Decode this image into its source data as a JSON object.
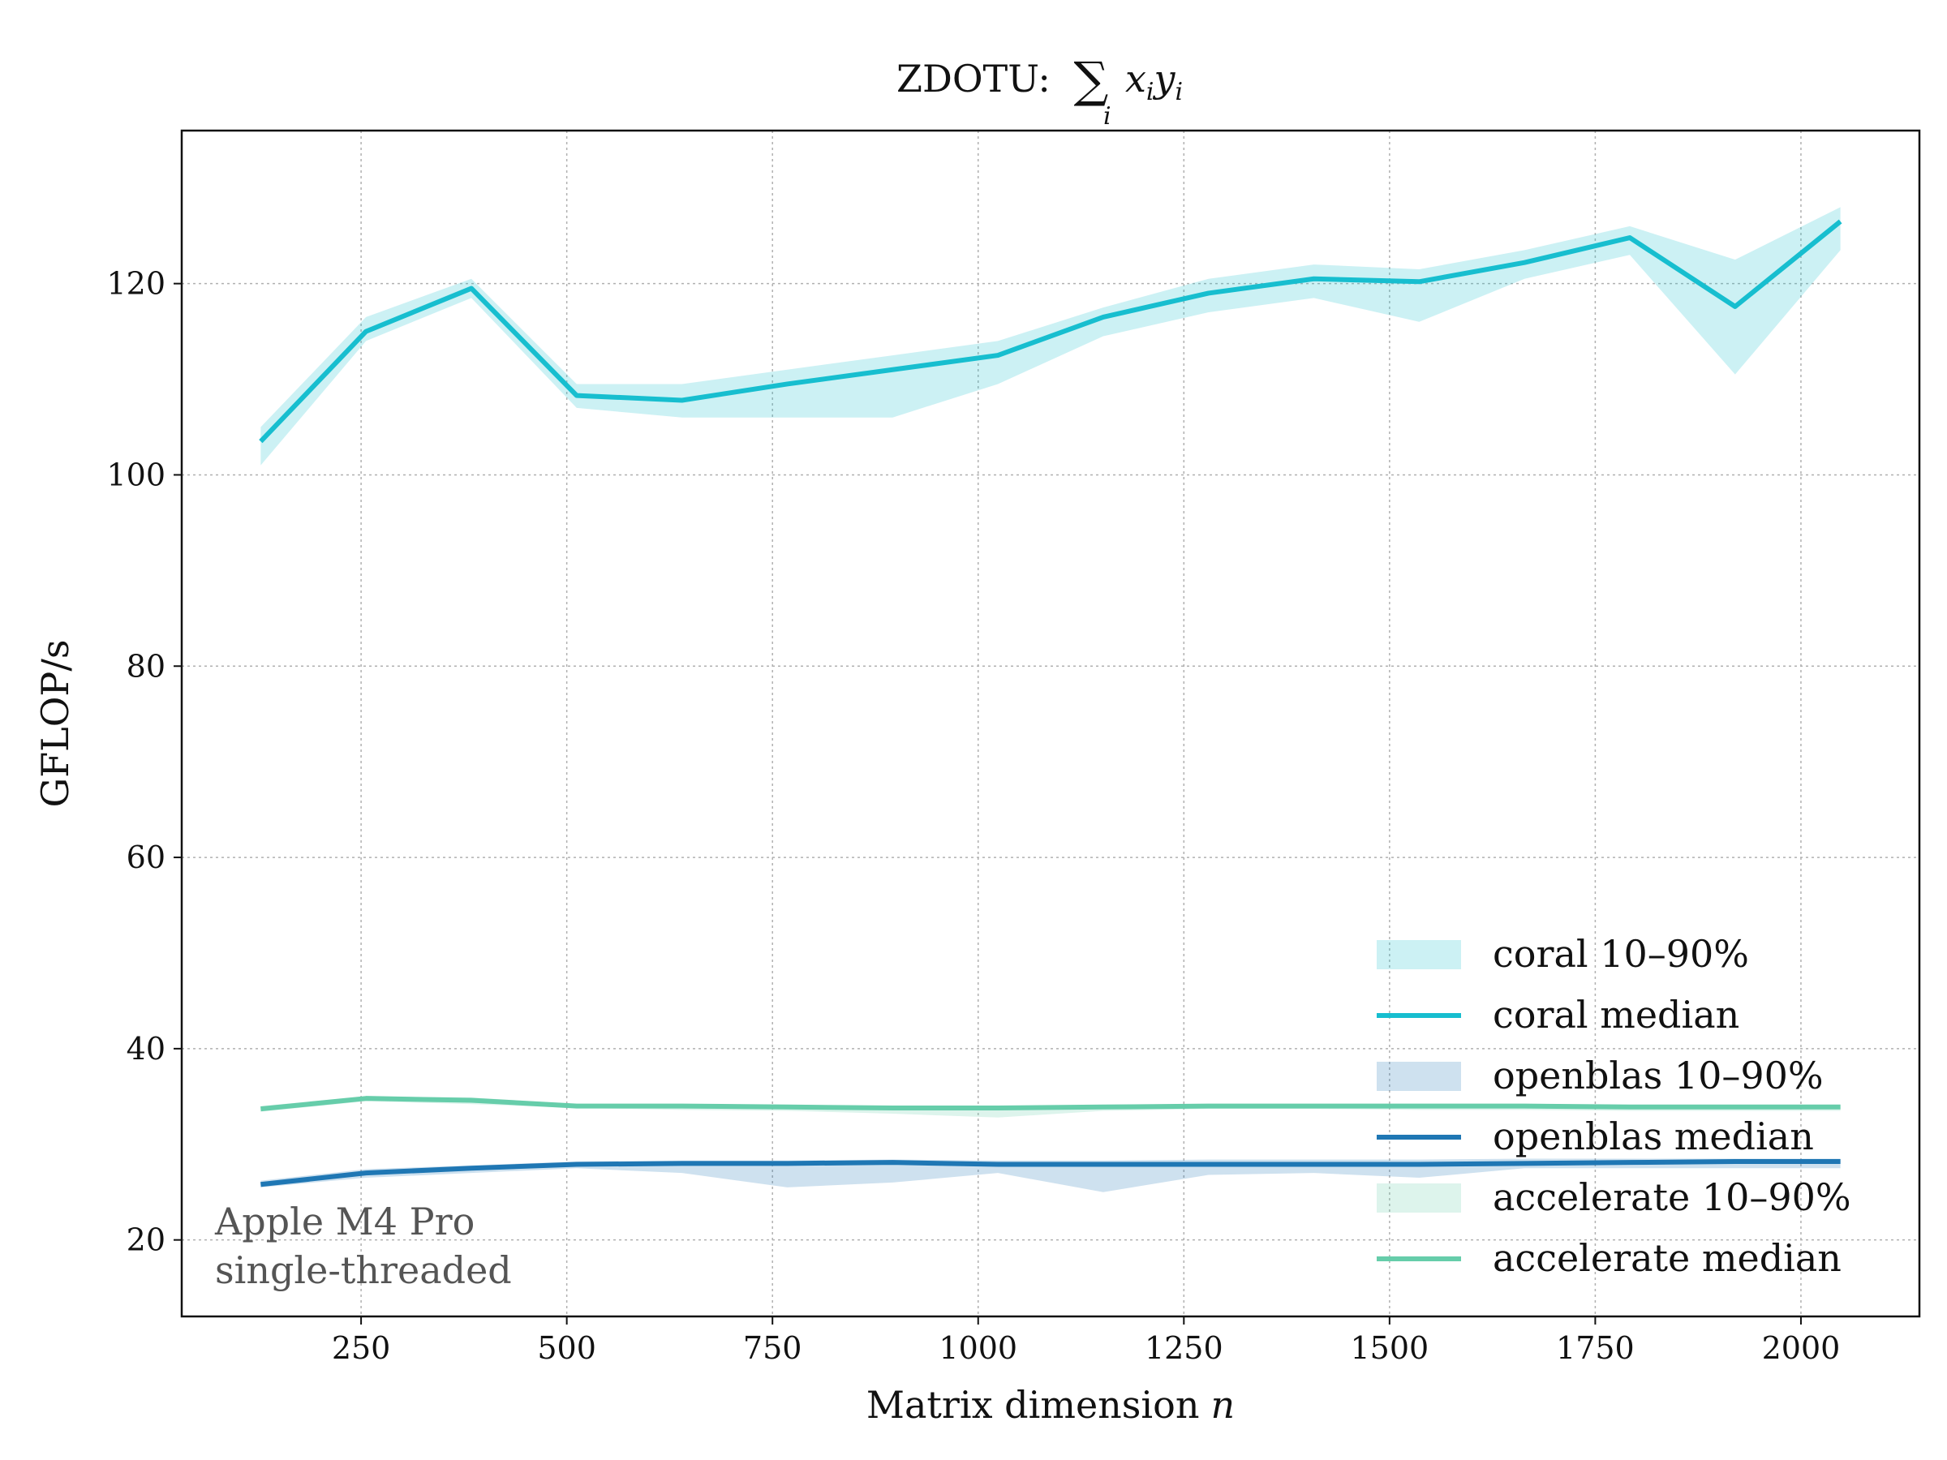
{
  "chart_data": {
    "type": "line",
    "title": "ZDOTU:",
    "title_math": {
      "operator": "∑",
      "subscript": "i",
      "expression": "x",
      "x_sub": "i",
      "y": "y",
      "y_sub": "i"
    },
    "xlabel": "Matrix dimension",
    "xlabel_var": "n",
    "ylabel": "GFLOP/s",
    "xlim": [
      32,
      2144
    ],
    "ylim": [
      12,
      136
    ],
    "xticks": [
      250,
      500,
      750,
      1000,
      1250,
      1500,
      1750,
      2000
    ],
    "yticks": [
      20,
      40,
      60,
      80,
      100,
      120
    ],
    "grid": true,
    "annotation": [
      "Apple M4 Pro",
      "single-threaded"
    ],
    "x": [
      128,
      256,
      384,
      512,
      640,
      768,
      896,
      1024,
      1152,
      1280,
      1408,
      1536,
      1664,
      1792,
      1920,
      2048
    ],
    "series": [
      {
        "name": "coral",
        "color": "#17becf",
        "median": [
          103.5,
          115.0,
          119.5,
          108.3,
          107.8,
          109.5,
          111.0,
          112.5,
          116.5,
          119.0,
          120.5,
          120.2,
          122.2,
          124.8,
          117.6,
          126.5
        ],
        "p10": [
          101.0,
          114.0,
          118.5,
          107.0,
          106.0,
          106.0,
          106.0,
          109.5,
          114.5,
          117.0,
          118.5,
          116.0,
          120.5,
          123.0,
          110.5,
          123.5
        ],
        "p90": [
          105.0,
          116.5,
          120.5,
          109.5,
          109.5,
          111.0,
          112.5,
          114.0,
          117.5,
          120.5,
          122.0,
          121.5,
          123.5,
          126.0,
          122.5,
          128.0
        ]
      },
      {
        "name": "openblas",
        "color": "#1f77b4",
        "median": [
          25.8,
          27.0,
          27.5,
          27.9,
          28.0,
          28.0,
          28.1,
          27.9,
          27.9,
          27.9,
          27.9,
          27.9,
          28.0,
          28.1,
          28.2,
          28.2
        ],
        "p10": [
          25.5,
          26.5,
          27.0,
          27.5,
          27.0,
          25.5,
          26.0,
          27.0,
          25.0,
          26.8,
          27.0,
          26.5,
          27.5,
          27.5,
          27.5,
          27.5
        ],
        "p90": [
          26.2,
          27.4,
          27.8,
          28.2,
          28.3,
          28.3,
          28.4,
          28.3,
          28.3,
          28.4,
          28.4,
          28.4,
          28.5,
          28.5,
          28.5,
          28.5
        ]
      },
      {
        "name": "accelerate",
        "color": "#66cdaa",
        "median": [
          33.7,
          34.8,
          34.6,
          34.0,
          34.0,
          33.9,
          33.8,
          33.8,
          33.9,
          34.0,
          34.0,
          34.0,
          34.0,
          33.9,
          33.9,
          33.9
        ],
        "p10": [
          33.4,
          34.5,
          34.2,
          33.8,
          33.6,
          33.5,
          33.2,
          32.8,
          33.5,
          33.7,
          33.7,
          33.6,
          33.6,
          33.5,
          33.5,
          33.5
        ],
        "p90": [
          34.0,
          35.0,
          34.9,
          34.2,
          34.2,
          34.1,
          34.0,
          34.0,
          34.1,
          34.2,
          34.2,
          34.2,
          34.2,
          34.1,
          34.1,
          34.1
        ]
      }
    ],
    "legend": {
      "placement": "lower-right",
      "entries": [
        {
          "label": "coral 10–90%",
          "kind": "band",
          "series": "coral"
        },
        {
          "label": "coral median",
          "kind": "line",
          "series": "coral"
        },
        {
          "label": "openblas 10–90%",
          "kind": "band",
          "series": "openblas"
        },
        {
          "label": "openblas median",
          "kind": "line",
          "series": "openblas"
        },
        {
          "label": "accelerate 10–90%",
          "kind": "band",
          "series": "accelerate"
        },
        {
          "label": "accelerate median",
          "kind": "line",
          "series": "accelerate"
        }
      ]
    }
  }
}
